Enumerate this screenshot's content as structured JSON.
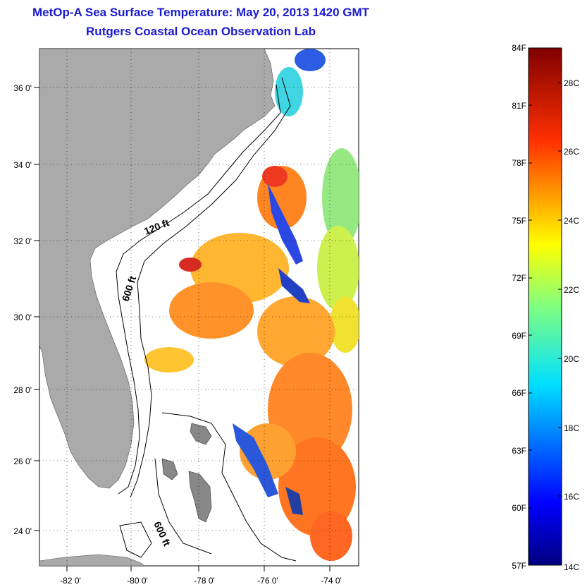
{
  "title": {
    "line1": "MetOp-A Sea Surface Temperature:  May 20, 2013 1420 GMT",
    "line2": "Rutgers Coastal Ocean Observation Lab"
  },
  "map": {
    "lon_range": [
      -83,
      -73
    ],
    "lat_range": [
      23,
      37
    ],
    "lon_ticks": [
      "-82 0'",
      "-80 0'",
      "-78 0'",
      "-76 0'",
      "-74 0'"
    ],
    "lat_ticks": [
      "36 0'",
      "34 0'",
      "32 0'",
      "30 0'",
      "28 0'",
      "26 0'",
      "24 0'"
    ],
    "grid": "dotted",
    "colors": {
      "land": "#aaaaaa",
      "ocean_no_data": "#ffffff",
      "contour": "#000000",
      "title": "#1a1ad2"
    },
    "contour_labels": [
      "120 ft",
      "600 ft",
      "600 ft"
    ]
  },
  "colorbar": {
    "fahrenheit_labels": [
      "84F",
      "81F",
      "78F",
      "75F",
      "72F",
      "69F",
      "66F",
      "63F",
      "60F",
      "57F"
    ],
    "celsius_labels": [
      "28C",
      "26C",
      "24C",
      "22C",
      "20C",
      "18C",
      "16C",
      "14C"
    ],
    "range_F": [
      57,
      84
    ],
    "colormap": "jet"
  }
}
